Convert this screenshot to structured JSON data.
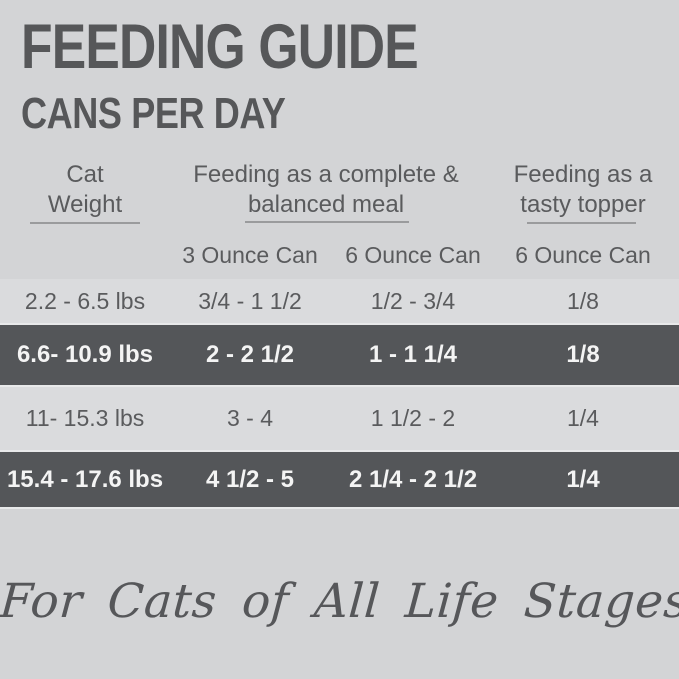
{
  "title": "FEEDING GUIDE",
  "subtitle": "CANS PER DAY",
  "header": {
    "groups": [
      {
        "line1": "Cat",
        "line2": "Weight"
      },
      {
        "line1": "Feeding as a complete &",
        "line2": "balanced meal"
      },
      {
        "line1": "Feeding as a",
        "line2": "tasty topper"
      }
    ],
    "sub_headers": [
      "3 Ounce Can",
      "6 Ounce Can",
      "6 Ounce Can"
    ]
  },
  "rows": [
    {
      "weight": "2.2 - 6.5 lbs",
      "can3": "3/4 - 1 1/2",
      "can6": "1/2 - 3/4",
      "topper": "1/8"
    },
    {
      "weight": "6.6- 10.9 lbs",
      "can3": "2 - 2 1/2",
      "can6": "1 - 1 1/4",
      "topper": "1/8"
    },
    {
      "weight": "11- 15.3 lbs",
      "can3": "3 - 4",
      "can6": "1 1/2 - 2",
      "topper": "1/4"
    },
    {
      "weight": "15.4 - 17.6 lbs",
      "can3": "4 1/2 - 5",
      "can6": "2 1/4 - 2 1/2",
      "topper": "1/4"
    }
  ],
  "footer": {
    "tagline": "For Cats of All Life Stages"
  },
  "colors": {
    "background": "#d3d4d6",
    "light_row": "#dadbdd",
    "dark_row": "#545659",
    "heading_text": "#565759",
    "body_text": "#5a5b5d",
    "dark_row_text": "#f4f4f4",
    "underline": "#9a9b9d",
    "separator": "#e8e9ea"
  },
  "chart_data": {
    "type": "table",
    "title": "FEEDING GUIDE",
    "subtitle": "CANS PER DAY",
    "column_groups": [
      {
        "label": "Cat Weight",
        "spans": [
          "Cat Weight"
        ]
      },
      {
        "label": "Feeding as a complete & balanced meal",
        "spans": [
          "3 Ounce Can",
          "6 Ounce Can"
        ]
      },
      {
        "label": "Feeding as a tasty topper",
        "spans": [
          "6 Ounce Can"
        ]
      }
    ],
    "columns": [
      "Cat Weight",
      "3 Ounce Can",
      "6 Ounce Can",
      "6 Ounce Can (topper)"
    ],
    "rows": [
      [
        "2.2 - 6.5 lbs",
        "3/4 - 1 1/2",
        "1/2 - 3/4",
        "1/8"
      ],
      [
        "6.6- 10.9 lbs",
        "2 - 2 1/2",
        "1 - 1 1/4",
        "1/8"
      ],
      [
        "11- 15.3 lbs",
        "3 - 4",
        "1 1/2 - 2",
        "1/4"
      ],
      [
        "15.4 - 17.6 lbs",
        "4 1/2 - 5",
        "2 1/4 - 2 1/2",
        "1/4"
      ]
    ],
    "footnote": "For Cats of All Life Stages"
  }
}
